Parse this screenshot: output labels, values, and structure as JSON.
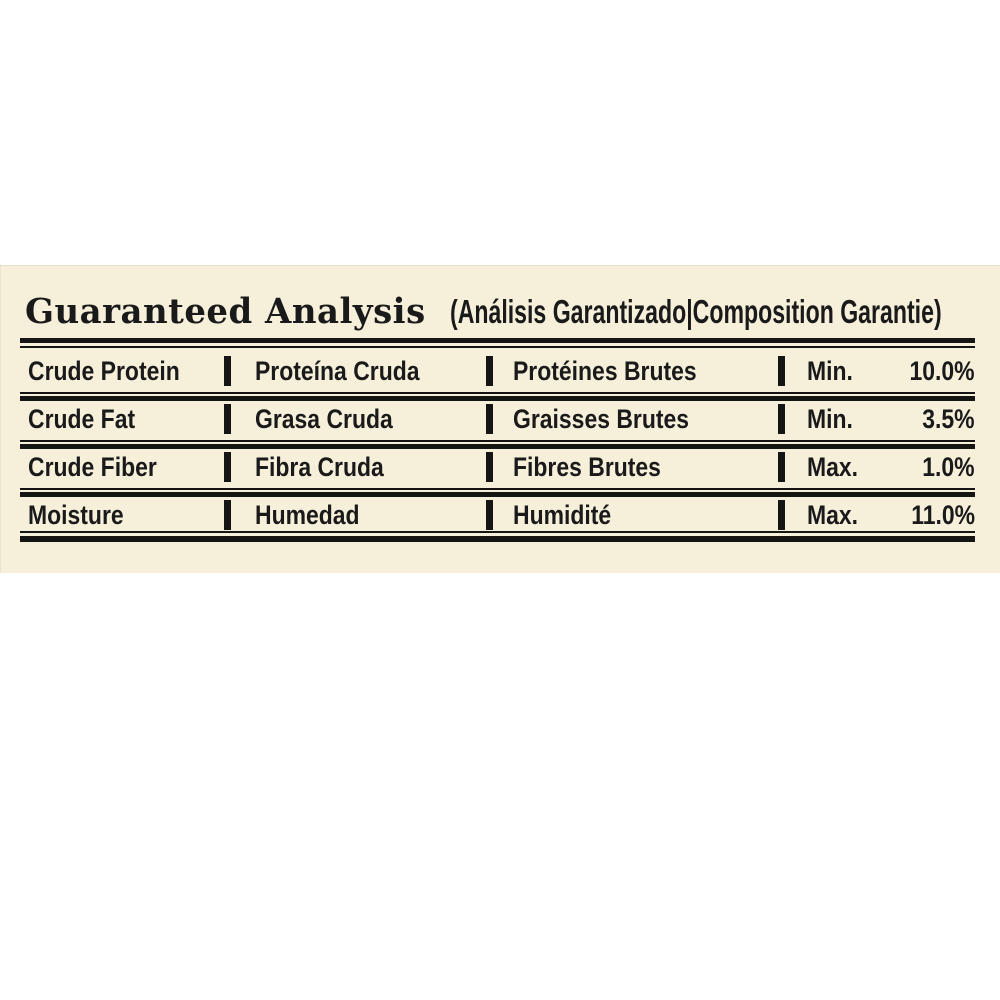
{
  "panel": {
    "background": "#f6f0db",
    "text_color": "#1a1a1a",
    "rule_color": "#151515"
  },
  "title": {
    "main": "Guaranteed Analysis",
    "sub": "(Análisis Garantizado|Composition Garantie)"
  },
  "table": {
    "rows": [
      {
        "en": "Crude Protein",
        "es": "Proteína Cruda",
        "fr": "Protéines Brutes",
        "limit": "Min.",
        "value": "10.0%"
      },
      {
        "en": "Crude Fat",
        "es": "Grasa Cruda",
        "fr": "Graisses Brutes",
        "limit": "Min.",
        "value": "3.5%"
      },
      {
        "en": "Crude Fiber",
        "es": "Fibra Cruda",
        "fr": "Fibres Brutes",
        "limit": "Max.",
        "value": "1.0%"
      },
      {
        "en": "Moisture",
        "es": "Humedad",
        "fr": "Humidité",
        "limit": "Max.",
        "value": "11.0%"
      }
    ]
  }
}
